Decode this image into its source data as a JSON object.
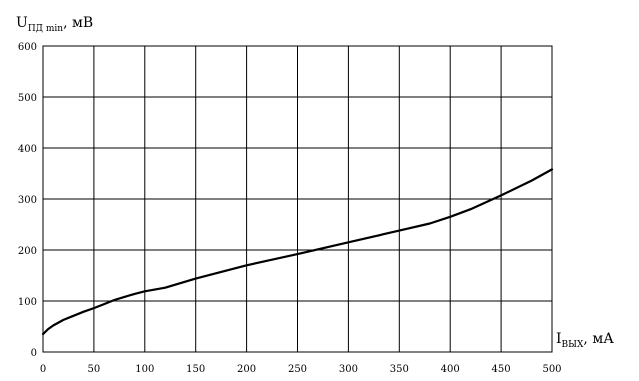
{
  "chart_data": {
    "type": "line",
    "title": "",
    "ylabel": {
      "main": "U",
      "sub": "ПД min",
      "unit": ", мВ"
    },
    "xlabel": {
      "main": "I",
      "sub": "ВЫХ",
      "unit": ", мА"
    },
    "xlim": [
      0,
      500
    ],
    "ylim": [
      0,
      600
    ],
    "xticks": [
      0,
      50,
      100,
      150,
      200,
      250,
      300,
      350,
      400,
      450,
      500
    ],
    "yticks": [
      0,
      100,
      200,
      300,
      400,
      500,
      600
    ],
    "grid": true,
    "series": [
      {
        "x": [
          0,
          5,
          10,
          20,
          30,
          40,
          50,
          60,
          70,
          80,
          90,
          100,
          120,
          150,
          200,
          250,
          300,
          350,
          380,
          400,
          420,
          450,
          480,
          500
        ],
        "y": [
          35,
          45,
          52,
          63,
          71,
          79,
          86,
          94,
          102,
          108,
          114,
          119,
          126,
          144,
          170,
          192,
          215,
          238,
          252,
          265,
          280,
          307,
          336,
          358
        ]
      }
    ]
  }
}
